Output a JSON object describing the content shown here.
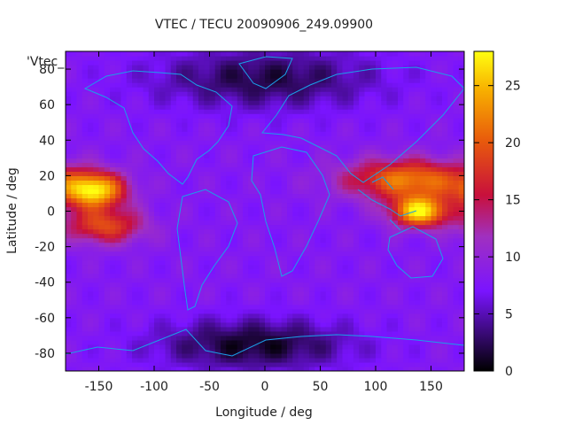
{
  "chart_data": {
    "type": "heatmap",
    "title": "VTEC / TECU 20090906_249.09900",
    "xlabel": "Longitude / deg",
    "ylabel": "Latitude / deg",
    "xlim": [
      -180,
      180
    ],
    "ylim": [
      -90,
      90
    ],
    "xticks": [
      -150,
      -100,
      -50,
      0,
      50,
      100,
      150
    ],
    "yticks": [
      -80,
      -60,
      -40,
      -20,
      0,
      20,
      40,
      60,
      80
    ],
    "colorbar": {
      "ticks": [
        0,
        5,
        10,
        15,
        20,
        25
      ],
      "range": [
        0,
        28
      ]
    },
    "legend": "'Vtec_",
    "overlay": "coastlines",
    "features": [
      {
        "desc": "equatorial anomaly crest",
        "lon": -155,
        "lat": 12,
        "value": 27,
        "slon": 20,
        "slat": 7
      },
      {
        "desc": "anomaly south crest",
        "lon": -145,
        "lat": -8,
        "value": 19,
        "slon": 25,
        "slat": 7
      },
      {
        "desc": "west pacific crest",
        "lon": 140,
        "lat": 0,
        "value": 27,
        "slon": 18,
        "slat": 6
      },
      {
        "desc": "asia band",
        "lon": 130,
        "lat": 18,
        "value": 22,
        "slon": 40,
        "slat": 8
      },
      {
        "desc": "arctic minimum",
        "lon": 0,
        "lat": 75,
        "value": 2,
        "slon": 70,
        "slat": 12
      },
      {
        "desc": "antarctic minimum",
        "lon": -10,
        "lat": -75,
        "value": 1,
        "slon": 60,
        "slat": 10
      }
    ]
  }
}
